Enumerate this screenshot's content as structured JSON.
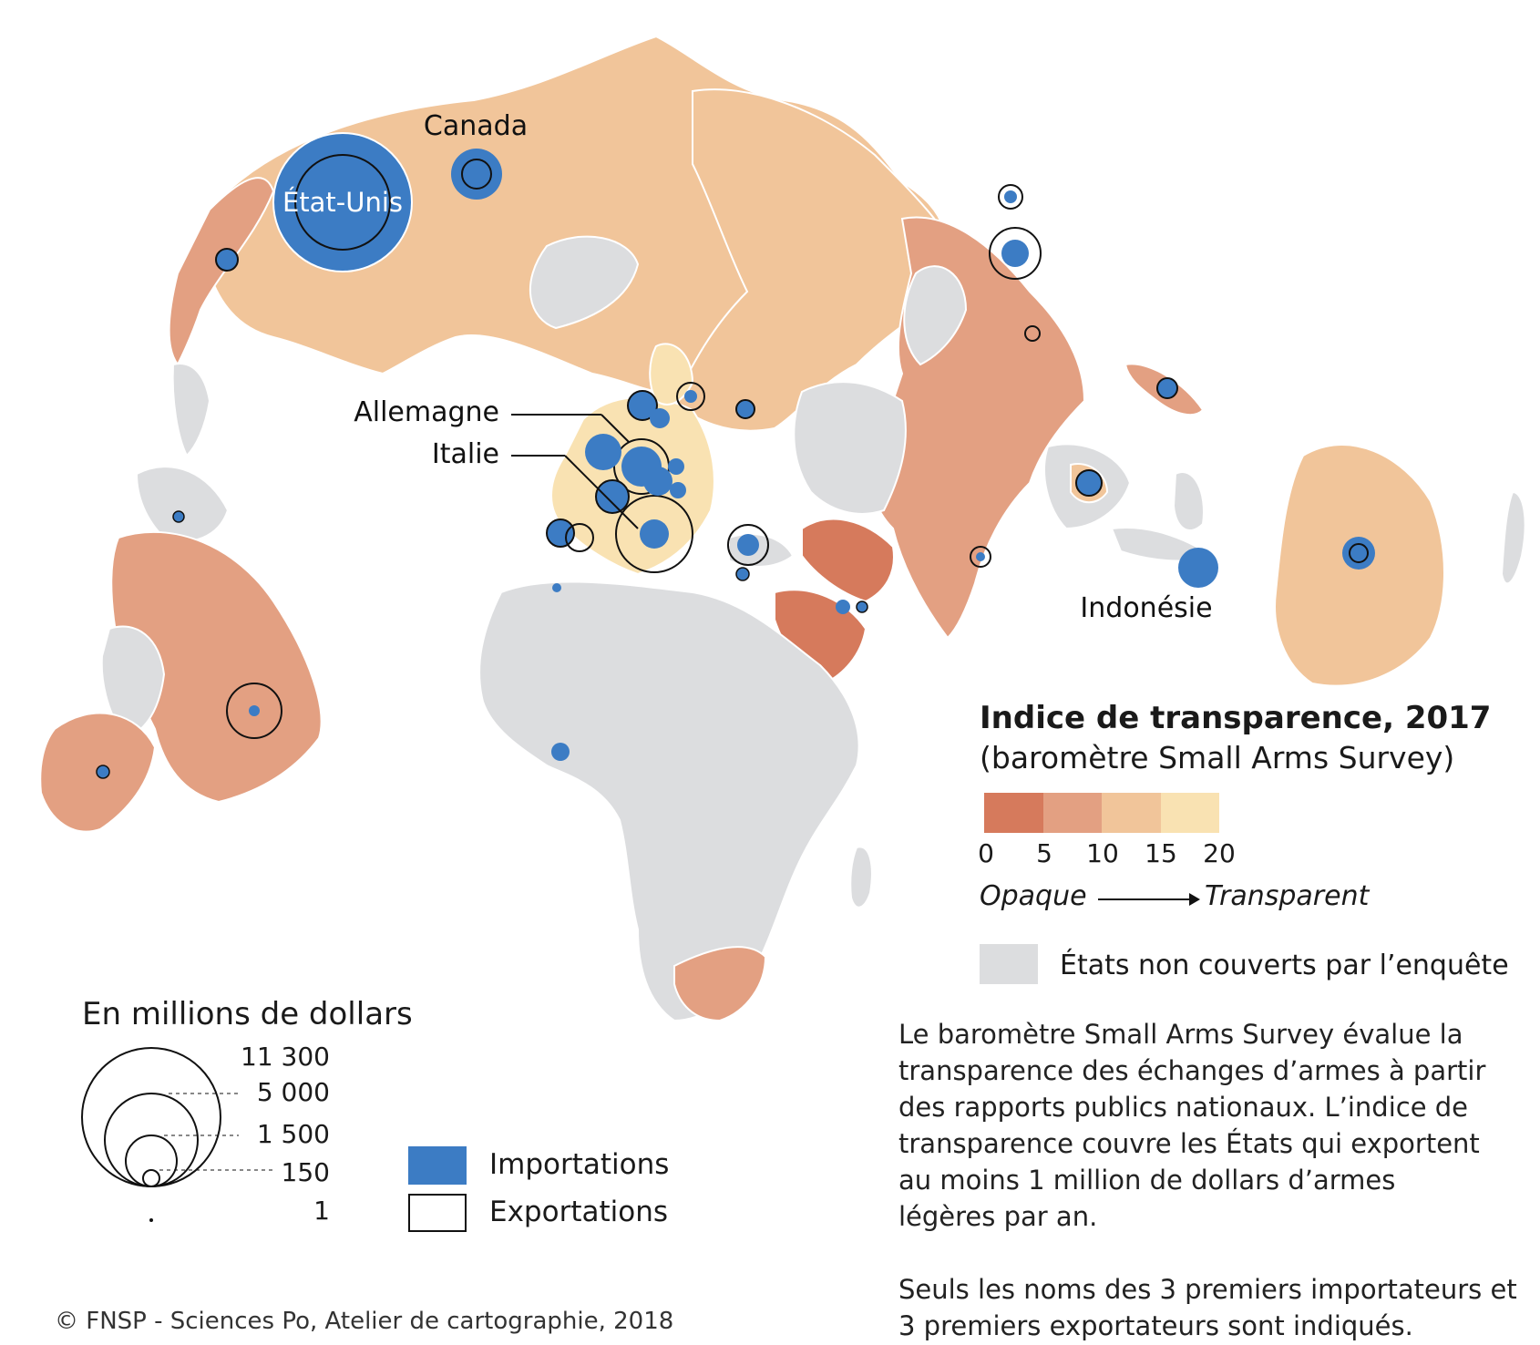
{
  "colors": {
    "opaque_0_5": "#d67a5c",
    "range_5_10": "#e3a082",
    "range_10_15": "#f1c59a",
    "transparent_15_20": "#f9e2b2",
    "not_covered": "#dcdddf",
    "imports": "#3c7cc4",
    "exports_outline": "#111111"
  },
  "map": {
    "labels": {
      "usa": "État-Unis",
      "canada": "Canada",
      "germany": "Allemagne",
      "italy": "Italie",
      "indonesia": "Indonésie"
    }
  },
  "legend": {
    "title": "Indice de transparence, 2017",
    "subtitle": "(baromètre Small Arms Survey)",
    "ticks": [
      "0",
      "5",
      "10",
      "15",
      "20"
    ],
    "opaque": "Opaque",
    "transparent": "Transparent",
    "not_covered": "États non couverts par l’enquête",
    "size_title": "En millions de dollars",
    "size_values": [
      "11 300",
      "5 000",
      "1 500",
      "150",
      "1"
    ],
    "imports": "Importations",
    "exports": "Exportations"
  },
  "note": {
    "paragraph1": "Le baromètre Small Arms Survey évalue la transparence des échanges d’armes à partir des rapports publics nationaux. L’indice de transparence couvre les États qui exportent au moins 1 million de dollars d’armes légères par an.",
    "paragraph2": "Seuls les noms des 3 premiers importateurs et 3 premiers exportateurs sont indiqués."
  },
  "credit": "© FNSP - Sciences Po, Atelier de cartographie, 2018"
}
